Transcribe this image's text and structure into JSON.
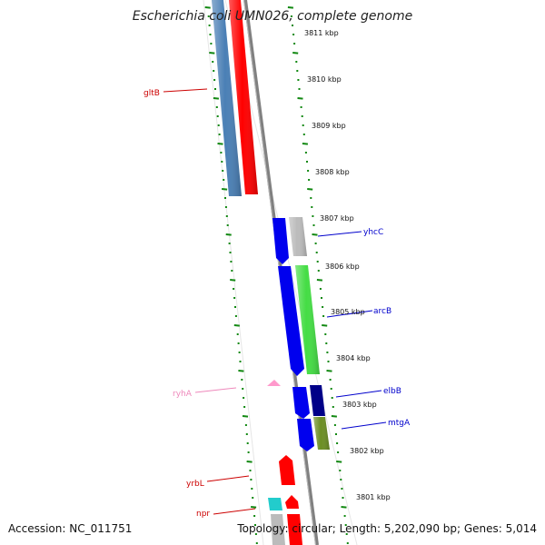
{
  "title": "Escherichia coli UMN026, complete genome",
  "footer": {
    "accession": "Accession: NC_011751",
    "summary": "Topology: circular; Length: 5,202,090 bp; Genes: 5,014"
  },
  "kbp_labels": [
    "3811 kbp",
    "3810 kbp",
    "3809 kbp",
    "3808 kbp",
    "3807 kbp",
    "3806 kbp",
    "3805 kbp",
    "3804 kbp",
    "3803 kbp",
    "3802 kbp",
    "3801 kbp"
  ],
  "genes": [
    {
      "name": "gltB",
      "color": "#cc0000"
    },
    {
      "name": "yhcC",
      "color": "#0000cc"
    },
    {
      "name": "arcB",
      "color": "#0000cc"
    },
    {
      "name": "elbB",
      "color": "#0000cc"
    },
    {
      "name": "mtgA",
      "color": "#0000cc"
    },
    {
      "name": "ryhA",
      "color": "#ee88bb"
    },
    {
      "name": "yrbL",
      "color": "#cc0000"
    },
    {
      "name": "npr",
      "color": "#cc0000"
    }
  ],
  "colors": {
    "tick_green": "#118811",
    "backbone": "#888888",
    "steel_blue": "#4a7fb5",
    "red": "#ff0000",
    "blue": "#0000ee",
    "grey": "#bbbbbb",
    "green": "#44dd44",
    "navy": "#000088",
    "olive": "#6b8e23",
    "cyan": "#22cccc",
    "pink": "#ff99cc"
  }
}
